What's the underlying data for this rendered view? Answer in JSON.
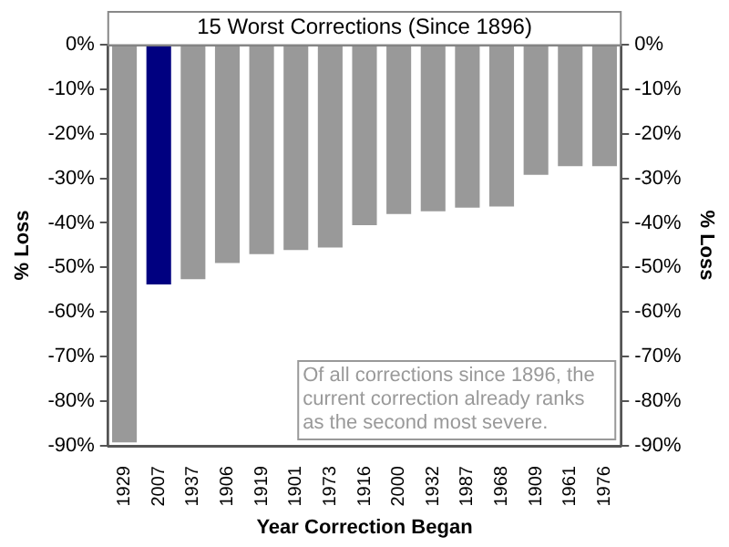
{
  "chart_data": {
    "type": "bar",
    "title": "15 Worst Corrections (Since 1896)",
    "xlabel": "Year Correction Began",
    "ylabel": "% Loss",
    "y2label": "% Loss",
    "categories": [
      "1929",
      "2007",
      "1937",
      "1906",
      "1919",
      "1901",
      "1973",
      "1916",
      "2000",
      "1932",
      "1987",
      "1968",
      "1909",
      "1961",
      "1976"
    ],
    "values": [
      -89.2,
      -53.8,
      -52.6,
      -49,
      -47,
      -46.1,
      -45.5,
      -40.5,
      -38,
      -37.4,
      -36.6,
      -36.3,
      -29.2,
      -27.3,
      -27.3
    ],
    "colors": [
      "#999999",
      "#000080",
      "#999999",
      "#999999",
      "#999999",
      "#999999",
      "#999999",
      "#999999",
      "#999999",
      "#999999",
      "#999999",
      "#999999",
      "#999999",
      "#999999",
      "#999999"
    ],
    "ylim": [
      -90,
      0
    ],
    "yticks": [
      {
        "value": -90,
        "label": "-90%"
      },
      {
        "value": -80,
        "label": "-80%"
      },
      {
        "value": -70,
        "label": "-70%"
      },
      {
        "value": -60,
        "label": "-60%"
      },
      {
        "value": -50,
        "label": "-50%"
      },
      {
        "value": -40,
        "label": "-40%"
      },
      {
        "value": -30,
        "label": "-30%"
      },
      {
        "value": -20,
        "label": "-20%"
      },
      {
        "value": -10,
        "label": "-10%"
      },
      {
        "value": 0,
        "label": "0%"
      }
    ],
    "y2lim": [
      -90,
      0
    ],
    "y2ticks": [
      {
        "value": -90,
        "label": "-90%"
      },
      {
        "value": -80,
        "label": "-80%"
      },
      {
        "value": -70,
        "label": "-70%"
      },
      {
        "value": -60,
        "label": "-60%"
      },
      {
        "value": -50,
        "label": "-50%"
      },
      {
        "value": -40,
        "label": "-40%"
      },
      {
        "value": -30,
        "label": "-30%"
      },
      {
        "value": -20,
        "label": "-20%"
      },
      {
        "value": -10,
        "label": "-10%"
      },
      {
        "value": 0,
        "label": "0%"
      }
    ],
    "annotations": [
      "Of all corrections since 1896, the current correction already ranks as the second most severe."
    ],
    "grid": false,
    "legend": false
  }
}
